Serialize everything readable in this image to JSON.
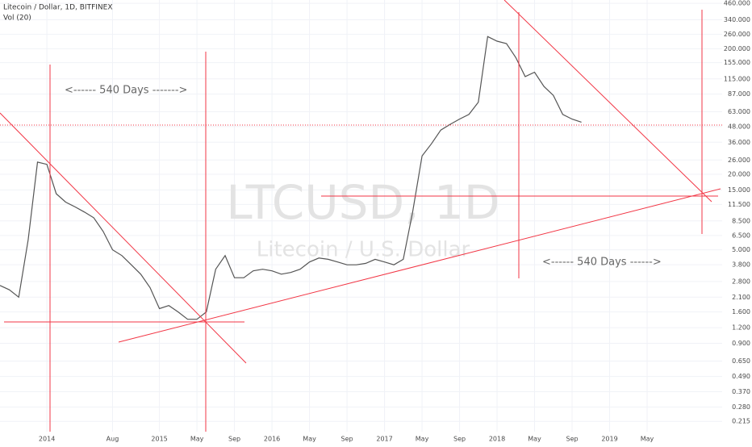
{
  "header": {
    "title": "Litecoin / Dollar, 1D, BITFINEX",
    "indicator": "Vol (20)"
  },
  "watermark": {
    "symbol": "LTCUSD, 1D",
    "name": "Litecoin / U.S. Dollar"
  },
  "annotations": [
    "<------ 540 Days ------->",
    "<------ 540 Days ------>"
  ],
  "chart_data": {
    "type": "line",
    "log_scale": true,
    "grid": true,
    "color": "#555555",
    "x": [
      "2013-08",
      "2013-09",
      "2013-10",
      "2013-11",
      "2013-12",
      "2014-01",
      "2014-02",
      "2014-03",
      "2014-04",
      "2014-05",
      "2014-06",
      "2014-07",
      "2014-08",
      "2014-09",
      "2014-10",
      "2014-11",
      "2014-12",
      "2015-01",
      "2015-02",
      "2015-03",
      "2015-04",
      "2015-05",
      "2015-06",
      "2015-07",
      "2015-08",
      "2015-09",
      "2015-10",
      "2015-11",
      "2015-12",
      "2016-01",
      "2016-02",
      "2016-03",
      "2016-04",
      "2016-05",
      "2016-06",
      "2016-07",
      "2016-08",
      "2016-09",
      "2016-10",
      "2016-11",
      "2016-12",
      "2017-01",
      "2017-02",
      "2017-03",
      "2017-04",
      "2017-05",
      "2017-06",
      "2017-07",
      "2017-08",
      "2017-09",
      "2017-10",
      "2017-11",
      "2017-12",
      "2018-01",
      "2018-02",
      "2018-03",
      "2018-04",
      "2018-05",
      "2018-06",
      "2018-07",
      "2018-08",
      "2018-09",
      "2018-10"
    ],
    "series": [
      {
        "values": [
          2.6,
          2.4,
          2.1,
          6,
          25,
          24,
          14,
          12,
          11,
          10,
          9,
          7,
          5,
          4.5,
          3.8,
          3.2,
          2.5,
          1.7,
          1.8,
          1.6,
          1.4,
          1.4,
          1.6,
          3.5,
          4.5,
          3,
          3,
          3.4,
          3.5,
          3.4,
          3.2,
          3.3,
          3.5,
          4,
          4.3,
          4.2,
          4,
          3.8,
          3.8,
          3.9,
          4.2,
          4,
          3.8,
          4.2,
          10,
          28,
          35,
          45,
          50,
          55,
          60,
          75,
          250,
          230,
          220,
          170,
          120,
          130,
          100,
          85,
          60,
          55,
          52
        ]
      }
    ],
    "xlim": [
      "2013-08",
      "2020-01"
    ],
    "xticks": [
      {
        "value": "2014-01",
        "label": "2014"
      },
      {
        "value": "2014-08",
        "label": "Aug"
      },
      {
        "value": "2015-01",
        "label": "2015"
      },
      {
        "value": "2015-05",
        "label": "May"
      },
      {
        "value": "2015-09",
        "label": "Sep"
      },
      {
        "value": "2016-01",
        "label": "2016"
      },
      {
        "value": "2016-05",
        "label": "May"
      },
      {
        "value": "2016-09",
        "label": "Sep"
      },
      {
        "value": "2017-01",
        "label": "2017"
      },
      {
        "value": "2017-05",
        "label": "May"
      },
      {
        "value": "2017-09",
        "label": "Sep"
      },
      {
        "value": "2018-01",
        "label": "2018"
      },
      {
        "value": "2018-05",
        "label": "May"
      },
      {
        "value": "2018-09",
        "label": "Sep"
      },
      {
        "value": "2019-01",
        "label": "2019"
      },
      {
        "value": "2019-05",
        "label": "May"
      }
    ],
    "ylim": [
      0.178,
      489
    ],
    "yticks": [
      {
        "value": 460,
        "label": "460.000"
      },
      {
        "value": 340,
        "label": "340.000"
      },
      {
        "value": 260,
        "label": "260.000"
      },
      {
        "value": 200,
        "label": "200.000"
      },
      {
        "value": 155,
        "label": "155.000"
      },
      {
        "value": 115,
        "label": "115.000"
      },
      {
        "value": 87,
        "label": "87.000"
      },
      {
        "value": 63,
        "label": "63.000"
      },
      {
        "value": 48,
        "label": "48.000"
      },
      {
        "value": 36,
        "label": "36.000"
      },
      {
        "value": 26,
        "label": "26.000"
      },
      {
        "value": 20,
        "label": "20.000"
      },
      {
        "value": 15,
        "label": "15.000"
      },
      {
        "value": 11.5,
        "label": "11.500"
      },
      {
        "value": 8.5,
        "label": "8.500"
      },
      {
        "value": 6.5,
        "label": "6.500"
      },
      {
        "value": 5,
        "label": "5.000"
      },
      {
        "value": 3.8,
        "label": "3.800"
      },
      {
        "value": 2.8,
        "label": "2.800"
      },
      {
        "value": 2.1,
        "label": "2.100"
      },
      {
        "value": 1.6,
        "label": "1.600"
      },
      {
        "value": 1.2,
        "label": "1.200"
      },
      {
        "value": 0.9,
        "label": "0.900"
      },
      {
        "value": 0.65,
        "label": "0.650"
      },
      {
        "value": 0.49,
        "label": "0.490"
      },
      {
        "value": 0.37,
        "label": "0.370"
      },
      {
        "value": 0.28,
        "label": "0.280"
      },
      {
        "value": 0.215,
        "label": "0.215"
      }
    ]
  }
}
